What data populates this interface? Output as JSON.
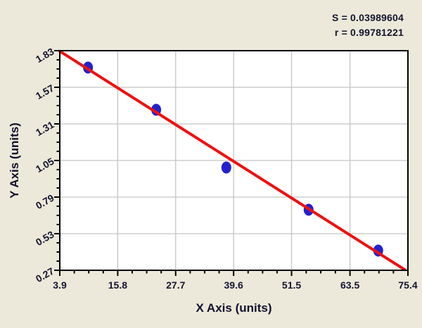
{
  "chart_data": {
    "type": "scatter",
    "title": "",
    "xlabel": "X Axis (units)",
    "ylabel": "Y Axis (units)",
    "xlim": [
      3.9,
      75.4
    ],
    "ylim": [
      0.27,
      1.83
    ],
    "x_ticks": [
      3.9,
      15.8,
      27.7,
      39.6,
      51.5,
      63.5,
      75.4
    ],
    "x_tick_labels": [
      "3.9",
      "15.8",
      "27.7",
      "39.6",
      "51.5",
      "63.5",
      "75.4"
    ],
    "y_ticks": [
      0.27,
      0.53,
      0.79,
      1.05,
      1.31,
      1.57,
      1.83
    ],
    "y_tick_labels": [
      "0.27",
      "0.53",
      "0.79",
      "1.05",
      "1.31",
      "1.57",
      "1.83"
    ],
    "minor_ticks_per_interval": 3,
    "grid": true,
    "legend": "none",
    "points": [
      {
        "x": 9.7,
        "y": 1.71
      },
      {
        "x": 23.7,
        "y": 1.41
      },
      {
        "x": 38.1,
        "y": 1.0
      },
      {
        "x": 55.0,
        "y": 0.7
      },
      {
        "x": 69.3,
        "y": 0.41
      }
    ],
    "fit_line": {
      "x1": 3.9,
      "y1": 1.826,
      "x2": 74.7,
      "y2": 0.275
    },
    "annotations": {
      "s": "S = 0.03989604",
      "r": "r = 0.99781221"
    },
    "colors": {
      "figure_bg": "#ece9da",
      "plot_bg": "#ffffff",
      "grid": "#c4c4c4",
      "frame": "#000000",
      "tick": "#000000",
      "marker": "#2222cc",
      "line": "#ee1111",
      "text": "#14142e"
    }
  }
}
